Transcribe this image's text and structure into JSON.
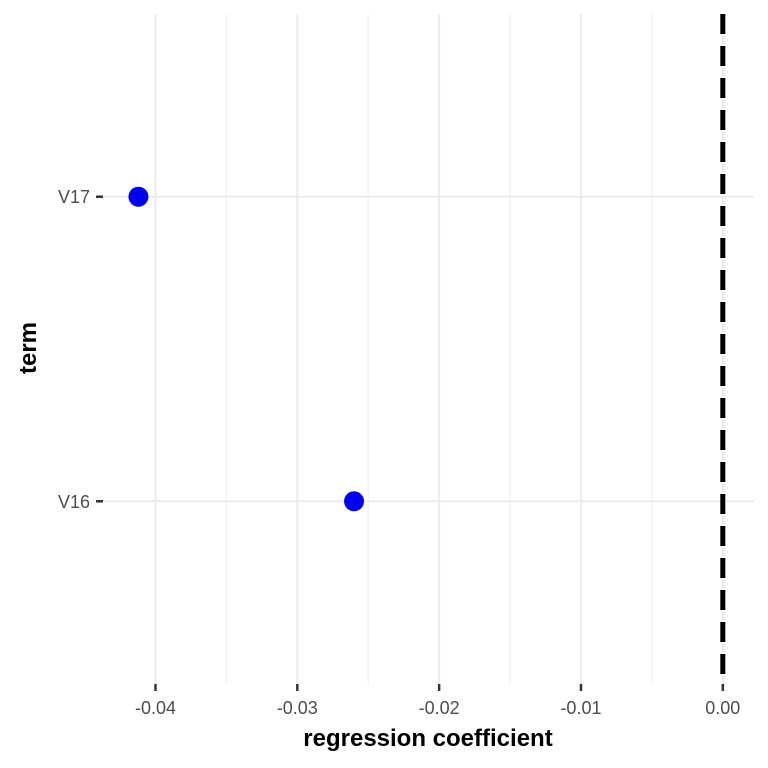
{
  "chart_data": {
    "type": "scatter",
    "xlabel": "regression coefficient",
    "ylabel": "term",
    "xlim": [
      -0.0437,
      0.0022
    ],
    "x_ticks": [
      -0.04,
      -0.03,
      -0.02,
      -0.01,
      0.0
    ],
    "x_tick_labels": [
      "-0.04",
      "-0.03",
      "-0.02",
      "-0.01",
      "0.00"
    ],
    "x_minor_ticks": [
      -0.035,
      -0.025,
      -0.015,
      -0.005
    ],
    "categories": [
      "V16",
      "V17"
    ],
    "points": [
      {
        "term": "V17",
        "x": -0.0412
      },
      {
        "term": "V16",
        "x": -0.026
      }
    ],
    "reference_line": {
      "x": 0.0,
      "style": "dashed",
      "color": "#000000"
    },
    "point_color": "#0000ee",
    "grid": true,
    "legend": "none"
  }
}
